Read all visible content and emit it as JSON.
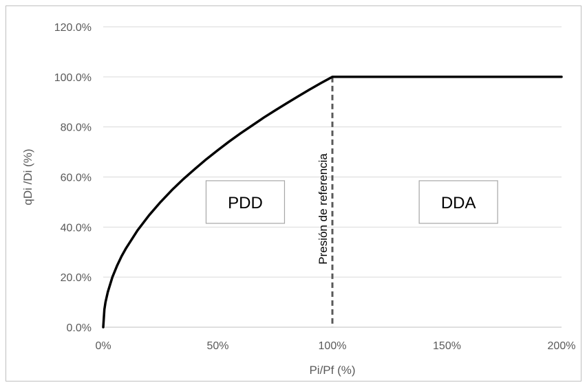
{
  "chart_data": {
    "type": "line",
    "title": "",
    "xlabel": "Pi/Pf (%)",
    "ylabel": "qDi /Di (%)",
    "xlim": [
      0,
      200
    ],
    "ylim": [
      0,
      120
    ],
    "x_ticks": [
      "0%",
      "50%",
      "100%",
      "150%",
      "200%"
    ],
    "x_tick_values": [
      0,
      50,
      100,
      150,
      200
    ],
    "y_ticks": [
      "0.0%",
      "20.0%",
      "40.0%",
      "60.0%",
      "80.0%",
      "100.0%",
      "120.0%"
    ],
    "y_tick_values": [
      0,
      20,
      40,
      60,
      80,
      100,
      120
    ],
    "grid": "horizontal",
    "series": [
      {
        "color": "#000000",
        "x": [
          0,
          0.5,
          1,
          2,
          4,
          6,
          8,
          10,
          15,
          20,
          25,
          30,
          35,
          40,
          45,
          50,
          55,
          60,
          65,
          70,
          75,
          80,
          85,
          90,
          95,
          100,
          200
        ],
        "y": [
          0,
          7.1,
          10,
          14.1,
          20,
          24.5,
          28.3,
          31.6,
          38.7,
          44.7,
          50,
          54.8,
          59.2,
          63.2,
          67.1,
          70.7,
          74.2,
          77.5,
          80.6,
          83.7,
          86.6,
          89.4,
          92.2,
          94.9,
          97.5,
          100,
          100
        ]
      }
    ],
    "reference_line": {
      "x": 100,
      "label": "Presión de referencia",
      "style": "dashed",
      "color": "#595959"
    },
    "region_labels": [
      {
        "text": "PDD",
        "x": 62,
        "y": 50
      },
      {
        "text": "DDA",
        "x": 155,
        "y": 50
      }
    ]
  }
}
